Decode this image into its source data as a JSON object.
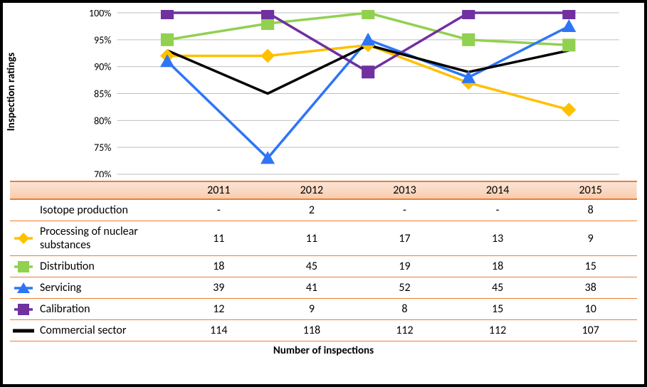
{
  "chart": {
    "ylabel": "Inspection ratings",
    "xlabel": "Number of inspections",
    "years": [
      "2011",
      "2012",
      "2013",
      "2014",
      "2015"
    ],
    "ylim": [
      70,
      100
    ],
    "ytick_step": 5,
    "grid_color": "#bfbfbf",
    "background_color": "#ffffff",
    "series": [
      {
        "name": "isotope",
        "label": "Isotope production",
        "color": null,
        "marker": null,
        "values": null
      },
      {
        "name": "processing",
        "label": "Processing of nuclear substances",
        "color": "#ffc000",
        "marker": "diamond",
        "values": [
          92,
          92,
          94,
          87,
          82
        ]
      },
      {
        "name": "distribution",
        "label": "Distribution",
        "color": "#92d050",
        "marker": "square",
        "values": [
          95,
          98,
          100,
          95,
          94
        ]
      },
      {
        "name": "servicing",
        "label": "Servicing",
        "color": "#2e75f6",
        "marker": "triangle",
        "values": [
          91,
          73,
          95,
          88,
          97.5
        ]
      },
      {
        "name": "calibration",
        "label": "Calibration",
        "color": "#7030a0",
        "marker": "square",
        "values": [
          100,
          100,
          89,
          100,
          100
        ]
      },
      {
        "name": "commercial",
        "label": "Commercial sector",
        "color": "#000000",
        "marker": "none",
        "values": [
          93,
          85,
          94,
          89,
          93
        ]
      }
    ],
    "line_width": 3.5,
    "marker_size": 18
  },
  "table": {
    "columns": [
      "2011",
      "2012",
      "2013",
      "2014",
      "2015"
    ],
    "rows": [
      {
        "name": "isotope",
        "label": "Isotope production",
        "cells": [
          "-",
          "2",
          "-",
          "-",
          "8"
        ]
      },
      {
        "name": "processing",
        "label": "Processing of nuclear substances",
        "cells": [
          "11",
          "11",
          "17",
          "13",
          "9"
        ]
      },
      {
        "name": "distribution",
        "label": "Distribution",
        "cells": [
          "18",
          "45",
          "19",
          "18",
          "15"
        ]
      },
      {
        "name": "servicing",
        "label": "Servicing",
        "cells": [
          "39",
          "41",
          "52",
          "45",
          "38"
        ]
      },
      {
        "name": "calibration",
        "label": "Calibration",
        "cells": [
          "12",
          "9",
          "8",
          "15",
          "10"
        ]
      },
      {
        "name": "commercial",
        "label": "Commercial sector",
        "cells": [
          "114",
          "118",
          "112",
          "112",
          "107"
        ]
      }
    ]
  }
}
